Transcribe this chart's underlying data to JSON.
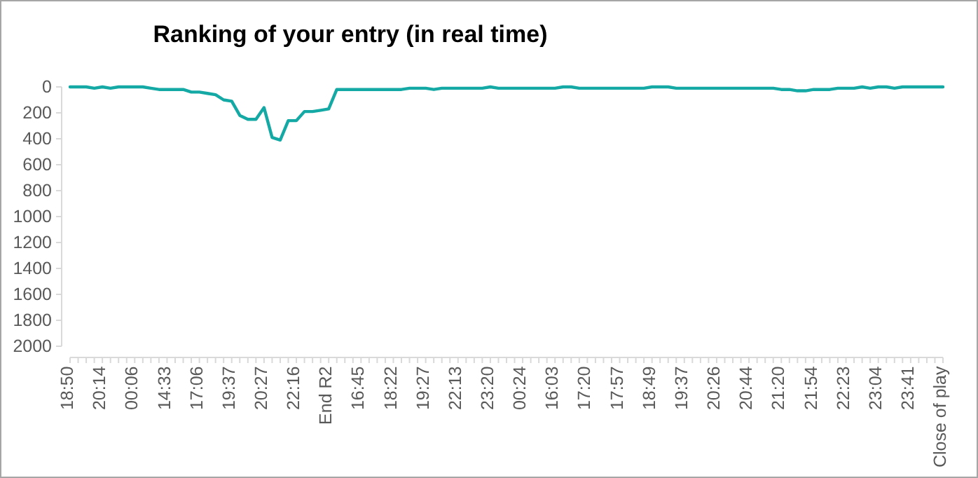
{
  "chart_data": {
    "type": "line",
    "title": "Ranking of your entry (in real time)",
    "categories": [
      "18:50",
      null,
      null,
      null,
      "20:14",
      null,
      null,
      null,
      "00:06",
      null,
      null,
      null,
      "14:33",
      null,
      null,
      null,
      "17:06",
      null,
      null,
      null,
      "19:37",
      null,
      null,
      null,
      "20:27",
      null,
      null,
      null,
      "22:16",
      null,
      null,
      null,
      "End R2",
      null,
      null,
      null,
      "16:45",
      null,
      null,
      null,
      "18:22",
      null,
      null,
      null,
      "19:27",
      null,
      null,
      null,
      "22:13",
      null,
      null,
      null,
      "23:20",
      null,
      null,
      null,
      "00:24",
      null,
      null,
      null,
      "16:03",
      null,
      null,
      null,
      "17:20",
      null,
      null,
      null,
      "17:57",
      null,
      null,
      null,
      "18:49",
      null,
      null,
      null,
      "19:37",
      null,
      null,
      null,
      "20:26",
      null,
      null,
      null,
      "20:44",
      null,
      null,
      null,
      "21:20",
      null,
      null,
      null,
      "21:54",
      null,
      null,
      null,
      "22:23",
      null,
      null,
      null,
      "23:04",
      null,
      null,
      null,
      "23:41",
      null,
      null,
      null,
      "Close of play"
    ],
    "series": [
      {
        "color": "#14a9a4",
        "values": [
          0,
          0,
          0,
          10,
          0,
          10,
          0,
          0,
          0,
          0,
          10,
          20,
          20,
          20,
          20,
          40,
          40,
          50,
          60,
          100,
          110,
          220,
          250,
          250,
          160,
          390,
          410,
          260,
          260,
          190,
          190,
          180,
          170,
          20,
          20,
          20,
          20,
          20,
          20,
          20,
          20,
          20,
          10,
          10,
          10,
          20,
          10,
          10,
          10,
          10,
          10,
          10,
          0,
          10,
          10,
          10,
          10,
          10,
          10,
          10,
          10,
          0,
          0,
          10,
          10,
          10,
          10,
          10,
          10,
          10,
          10,
          10,
          0,
          0,
          0,
          10,
          10,
          10,
          10,
          10,
          10,
          10,
          10,
          10,
          10,
          10,
          10,
          10,
          20,
          20,
          30,
          30,
          20,
          20,
          20,
          10,
          10,
          10,
          0,
          10,
          0,
          0,
          10,
          0,
          0,
          0,
          0,
          0,
          0
        ]
      }
    ],
    "ylim": [
      2000,
      0
    ],
    "yticks": [
      0,
      200,
      400,
      600,
      800,
      1000,
      1200,
      1400,
      1600,
      1800,
      2000
    ],
    "grid": false,
    "marker": "none",
    "line_style": "solid"
  }
}
